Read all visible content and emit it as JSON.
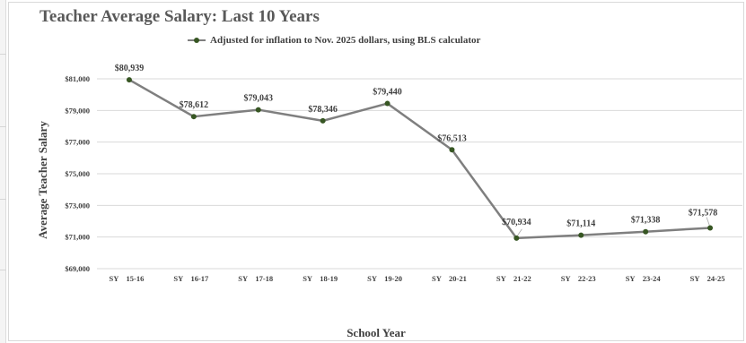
{
  "chart_data": {
    "type": "line",
    "title": "Teacher Average Salary: Last 10 Years",
    "xlabel": "School Year",
    "ylabel": "Average Teacher Salary",
    "ylim": [
      69000,
      81000
    ],
    "y_ticks": [
      69000,
      71000,
      73000,
      75000,
      77000,
      79000,
      81000
    ],
    "y_tick_labels": [
      "$69,000",
      "$71,000",
      "$73,000",
      "$75,000",
      "$77,000",
      "$79,000",
      "$81,000"
    ],
    "categories": [
      "SY    15-16",
      "SY    16-17",
      "SY    17-18",
      "SY    18-19",
      "SY    19-20",
      "SY    20-21",
      "SY    21-22",
      "SY    22-23",
      "SY    23-24",
      "SY    24-25"
    ],
    "series": [
      {
        "name": "Adjusted for inflation to Nov. 2025 dollars, using BLS calculator",
        "values": [
          80939,
          78612,
          79043,
          78346,
          79440,
          76513,
          70934,
          71114,
          71338,
          71578
        ],
        "labels": [
          "$80,939",
          "$78,612",
          "$79,043",
          "$78,346",
          "$79,440",
          "$76,513",
          "$70,934",
          "$71,114",
          "$71,338",
          "$71,578"
        ]
      }
    ],
    "legend_position": "top",
    "grid": true,
    "colors": {
      "line": "#7f7f7f",
      "marker": "#375623",
      "grid": "#d9d9d9",
      "text": "#404040",
      "title": "#595959"
    }
  }
}
